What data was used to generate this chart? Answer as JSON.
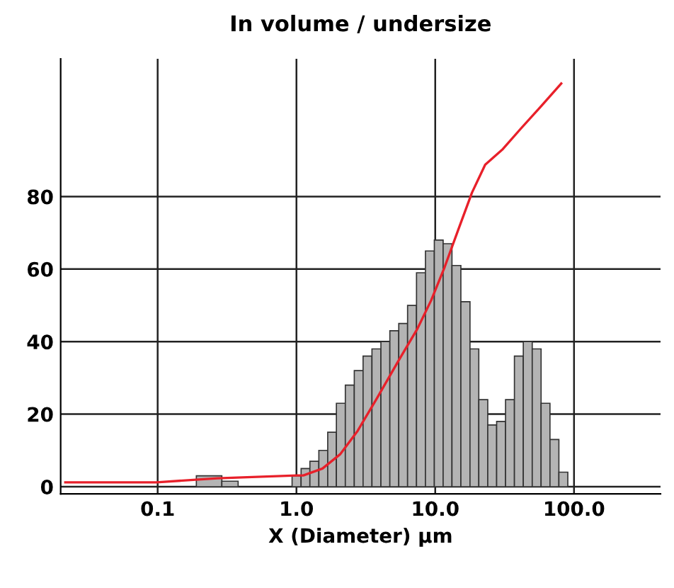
{
  "chart_data": {
    "type": "histogram",
    "title": "In volume / undersize",
    "xlabel": "X (Diameter) μm",
    "bins": [
      0.19,
      0.29,
      0.38,
      0.93,
      1.08,
      1.25,
      1.45,
      1.68,
      1.94,
      2.25,
      2.61,
      3.02,
      3.5,
      4.06,
      4.71,
      5.46,
      6.32,
      7.33,
      8.5,
      9.85,
      11.4,
      13.2,
      15.3,
      17.8,
      20.6,
      23.9,
      27.7,
      32.1,
      37.2,
      43.1,
      50,
      57.9,
      67.1,
      77.8,
      90.2
    ],
    "values": [
      3,
      1.5,
      null,
      3,
      5,
      7,
      10,
      15,
      23,
      28,
      32,
      36,
      38,
      40,
      43,
      45,
      50,
      59,
      65,
      68,
      67,
      61,
      51,
      38,
      24,
      17,
      18,
      24,
      36,
      40,
      38,
      23,
      13,
      4
    ],
    "color": "#b4b4b4",
    "series": [
      {
        "type": "line",
        "color": "#e8202a",
        "x": [
          0.0216,
          0.098,
          0.27,
          1,
          1.12,
          1.54,
          2.06,
          2.76,
          3.79,
          5.43,
          7.45,
          9.35,
          11.7,
          14.6,
          18.4,
          22.9,
          30.7,
          41.5,
          56.9,
          80.9
        ],
        "values": [
          1.2,
          1.2,
          2.3,
          3.1,
          3.1,
          5,
          8.9,
          15.4,
          24.3,
          34.7,
          43.6,
          51.4,
          60.6,
          70.7,
          81.1,
          88.8,
          93.1,
          98.8,
          104.6,
          111.2
        ]
      }
    ],
    "log": "x",
    "xlim": [
      0.02,
      420
    ],
    "xticks": [
      {
        "value": 0.1,
        "label": "0.1"
      },
      {
        "value": 1,
        "label": "1.0"
      },
      {
        "value": 10,
        "label": "10.0"
      },
      {
        "value": 100,
        "label": "100.0"
      }
    ],
    "ylim": [
      -2,
      118
    ],
    "yticks": [
      0,
      20,
      40,
      60,
      80
    ],
    "grid": true
  }
}
